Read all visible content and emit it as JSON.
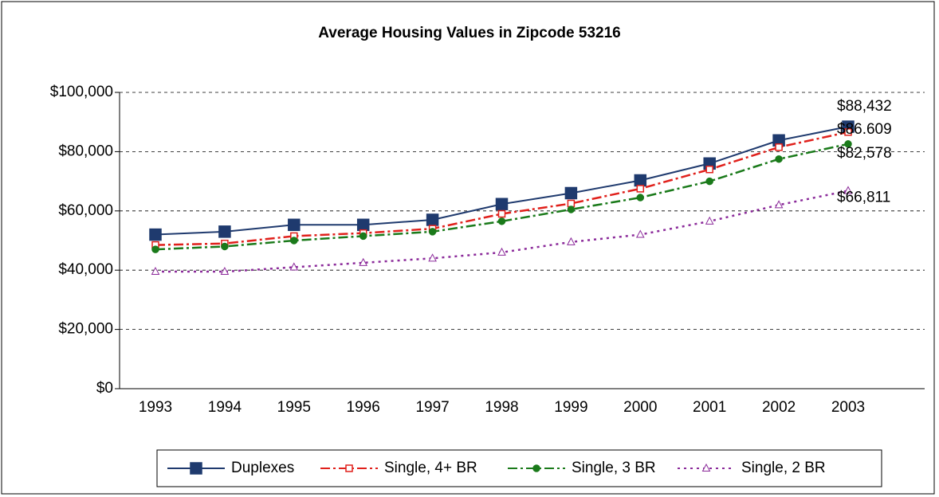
{
  "chart_data": {
    "type": "line",
    "title": "Average Housing Values in Zipcode 53216",
    "categories": [
      "1993",
      "1994",
      "1995",
      "1996",
      "1997",
      "1998",
      "1999",
      "2000",
      "2001",
      "2002",
      "2003"
    ],
    "ylim": [
      0,
      100000
    ],
    "yticks": [
      {
        "value": 0,
        "label": "$0"
      },
      {
        "value": 20000,
        "label": "$20,000"
      },
      {
        "value": 40000,
        "label": "$40,000"
      },
      {
        "value": 60000,
        "label": "$60,000"
      },
      {
        "value": 80000,
        "label": "$80,000"
      },
      {
        "value": 100000,
        "label": "$100,000"
      }
    ],
    "grid": true,
    "legend": "bottom",
    "series": [
      {
        "name": "Duplexes",
        "color": "#1f3a6e",
        "marker": "square",
        "line_style": "solid",
        "values": [
          52000,
          53000,
          55300,
          55300,
          57000,
          62300,
          66000,
          70300,
          76000,
          83800,
          88432
        ],
        "value_labels": [
          null,
          null,
          null,
          null,
          null,
          null,
          null,
          null,
          null,
          null,
          "$88,432"
        ]
      },
      {
        "name": "Single, 4+ BR",
        "color": "#e0201b",
        "marker": "open-square",
        "line_style": "dashdot",
        "values": [
          48500,
          49000,
          51500,
          52500,
          54000,
          59000,
          62500,
          67500,
          74000,
          81500,
          86609
        ],
        "value_labels": [
          null,
          null,
          null,
          null,
          null,
          null,
          null,
          null,
          null,
          null,
          "$86.609"
        ]
      },
      {
        "name": "Single, 3 BR",
        "color": "#1a7a1a",
        "marker": "circle",
        "line_style": "dashdot",
        "values": [
          47000,
          48000,
          50000,
          51500,
          53000,
          56500,
          60500,
          64500,
          70000,
          77500,
          82578
        ],
        "value_labels": [
          null,
          null,
          null,
          null,
          null,
          null,
          null,
          null,
          null,
          null,
          "$82,578"
        ]
      },
      {
        "name": "Single, 2 BR",
        "color": "#8b2a9a",
        "marker": "open-triangle",
        "line_style": "dotted",
        "values": [
          39500,
          39500,
          41000,
          42500,
          44000,
          46000,
          49500,
          52000,
          56500,
          62000,
          66811
        ],
        "value_labels": [
          null,
          null,
          null,
          null,
          null,
          null,
          null,
          null,
          null,
          null,
          "$66,811"
        ]
      }
    ]
  }
}
